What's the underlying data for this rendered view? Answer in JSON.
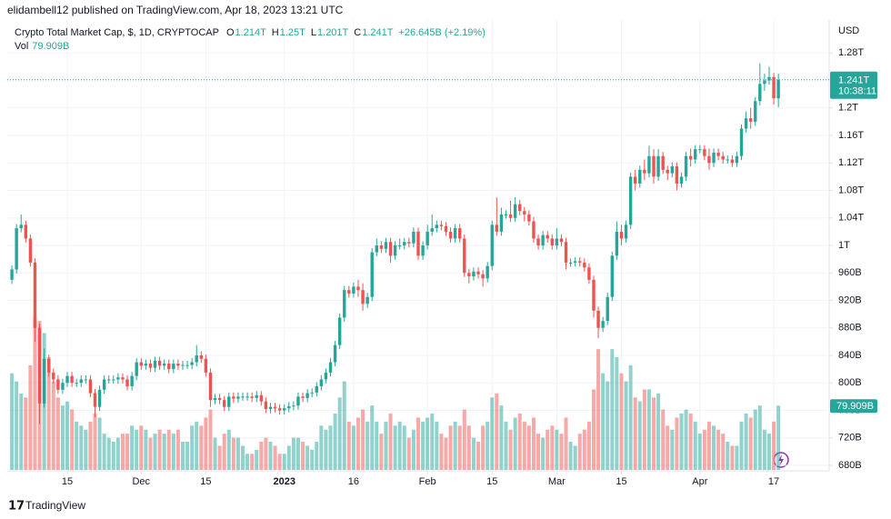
{
  "header": "elidambell12 published on TradingView.com, Apr 18, 2023 13:21 UTC",
  "footer_logo": "TradingView",
  "chart_data": {
    "type": "candlestick",
    "legend": {
      "title": "Crypto Total Market Cap, $, 1D, CRYPTOCAP",
      "ohlc": [
        {
          "key": "O",
          "label": "1.214T"
        },
        {
          "key": "H",
          "label": "1.25T"
        },
        {
          "key": "L",
          "label": "1.201T"
        },
        {
          "key": "C",
          "label": "1.241T"
        }
      ],
      "change": "+26.645B (+2.19%)",
      "volume_key": "Vol",
      "volume_label": "79.909B"
    },
    "y_unit": "USD",
    "last_close_label": "1.241T",
    "countdown": "10:38:11",
    "last_volume_label": "79.909B",
    "up_color": "#26a69a",
    "down_color": "#ef5350",
    "grid": true,
    "xlim": [
      "2022-11-02",
      "2023-04-29"
    ],
    "ylim": [
      672,
      1328
    ],
    "volume_lim": [
      0,
      560
    ],
    "yticks": [
      {
        "value": 680,
        "label": "680B"
      },
      {
        "value": 720,
        "label": "720B"
      },
      {
        "value": 760,
        "label": "760B"
      },
      {
        "value": 800,
        "label": "800B"
      },
      {
        "value": 840,
        "label": "840B"
      },
      {
        "value": 880,
        "label": "880B"
      },
      {
        "value": 920,
        "label": "920B"
      },
      {
        "value": 960,
        "label": "960B"
      },
      {
        "value": 1000,
        "label": "1T"
      },
      {
        "value": 1040,
        "label": "1.04T"
      },
      {
        "value": 1080,
        "label": "1.08T"
      },
      {
        "value": 1120,
        "label": "1.12T"
      },
      {
        "value": 1160,
        "label": "1.16T"
      },
      {
        "value": 1200,
        "label": "1.2T"
      },
      {
        "value": 1280,
        "label": "1.28T"
      }
    ],
    "xticks": [
      {
        "value": "2022-11-15",
        "label": "15"
      },
      {
        "value": "2022-12-01",
        "label": "Dec"
      },
      {
        "value": "2022-12-15",
        "label": "15"
      },
      {
        "value": "2023-01-01",
        "label": "2023"
      },
      {
        "value": "2023-01-16",
        "label": "16"
      },
      {
        "value": "2023-02-01",
        "label": "Feb"
      },
      {
        "value": "2023-02-15",
        "label": "15"
      },
      {
        "value": "2023-03-01",
        "label": "Mar"
      },
      {
        "value": "2023-03-15",
        "label": "15"
      },
      {
        "value": "2023-04-01",
        "label": "Apr"
      },
      {
        "value": "2023-04-17",
        "label": "17"
      }
    ],
    "x": [
      "2022-11-03",
      "2022-11-04",
      "2022-11-05",
      "2022-11-06",
      "2022-11-07",
      "2022-11-08",
      "2022-11-09",
      "2022-11-10",
      "2022-11-11",
      "2022-11-12",
      "2022-11-13",
      "2022-11-14",
      "2022-11-15",
      "2022-11-16",
      "2022-11-17",
      "2022-11-18",
      "2022-11-19",
      "2022-11-20",
      "2022-11-21",
      "2022-11-22",
      "2022-11-23",
      "2022-11-24",
      "2022-11-25",
      "2022-11-26",
      "2022-11-27",
      "2022-11-28",
      "2022-11-29",
      "2022-11-30",
      "2022-12-01",
      "2022-12-02",
      "2022-12-03",
      "2022-12-04",
      "2022-12-05",
      "2022-12-06",
      "2022-12-07",
      "2022-12-08",
      "2022-12-09",
      "2022-12-10",
      "2022-12-11",
      "2022-12-12",
      "2022-12-13",
      "2022-12-14",
      "2022-12-15",
      "2022-12-16",
      "2022-12-17",
      "2022-12-18",
      "2022-12-19",
      "2022-12-20",
      "2022-12-21",
      "2022-12-22",
      "2022-12-23",
      "2022-12-24",
      "2022-12-25",
      "2022-12-26",
      "2022-12-27",
      "2022-12-28",
      "2022-12-29",
      "2022-12-30",
      "2022-12-31",
      "2023-01-01",
      "2023-01-02",
      "2023-01-03",
      "2023-01-04",
      "2023-01-05",
      "2023-01-06",
      "2023-01-07",
      "2023-01-08",
      "2023-01-09",
      "2023-01-10",
      "2023-01-11",
      "2023-01-12",
      "2023-01-13",
      "2023-01-14",
      "2023-01-15",
      "2023-01-16",
      "2023-01-17",
      "2023-01-18",
      "2023-01-19",
      "2023-01-20",
      "2023-01-21",
      "2023-01-22",
      "2023-01-23",
      "2023-01-24",
      "2023-01-25",
      "2023-01-26",
      "2023-01-27",
      "2023-01-28",
      "2023-01-29",
      "2023-01-30",
      "2023-01-31",
      "2023-02-01",
      "2023-02-02",
      "2023-02-03",
      "2023-02-04",
      "2023-02-05",
      "2023-02-06",
      "2023-02-07",
      "2023-02-08",
      "2023-02-09",
      "2023-02-10",
      "2023-02-11",
      "2023-02-12",
      "2023-02-13",
      "2023-02-14",
      "2023-02-15",
      "2023-02-16",
      "2023-02-17",
      "2023-02-18",
      "2023-02-19",
      "2023-02-20",
      "2023-02-21",
      "2023-02-22",
      "2023-02-23",
      "2023-02-24",
      "2023-02-25",
      "2023-02-26",
      "2023-02-27",
      "2023-02-28",
      "2023-03-01",
      "2023-03-02",
      "2023-03-03",
      "2023-03-04",
      "2023-03-05",
      "2023-03-06",
      "2023-03-07",
      "2023-03-08",
      "2023-03-09",
      "2023-03-10",
      "2023-03-11",
      "2023-03-12",
      "2023-03-13",
      "2023-03-14",
      "2023-03-15",
      "2023-03-16",
      "2023-03-17",
      "2023-03-18",
      "2023-03-19",
      "2023-03-20",
      "2023-03-21",
      "2023-03-22",
      "2023-03-23",
      "2023-03-24",
      "2023-03-25",
      "2023-03-26",
      "2023-03-27",
      "2023-03-28",
      "2023-03-29",
      "2023-03-30",
      "2023-03-31",
      "2023-04-01",
      "2023-04-02",
      "2023-04-03",
      "2023-04-04",
      "2023-04-05",
      "2023-04-06",
      "2023-04-07",
      "2023-04-08",
      "2023-04-09",
      "2023-04-10",
      "2023-04-11",
      "2023-04-12",
      "2023-04-13",
      "2023-04-14",
      "2023-04-15",
      "2023-04-16",
      "2023-04-17",
      "2023-04-18"
    ],
    "open": [
      950,
      965,
      1025,
      1030,
      1010,
      975,
      880,
      770,
      835,
      815,
      805,
      790,
      800,
      810,
      800,
      800,
      805,
      805,
      785,
      765,
      790,
      805,
      805,
      805,
      808,
      805,
      795,
      810,
      830,
      825,
      828,
      822,
      832,
      825,
      828,
      820,
      828,
      825,
      826,
      826,
      830,
      840,
      835,
      815,
      775,
      778,
      775,
      765,
      780,
      777,
      780,
      780,
      780,
      778,
      782,
      773,
      762,
      765,
      763,
      760,
      763,
      766,
      767,
      780,
      778,
      785,
      786,
      795,
      805,
      815,
      830,
      855,
      895,
      935,
      930,
      940,
      935,
      915,
      925,
      990,
      1000,
      995,
      1005,
      985,
      1000,
      1000,
      1005,
      1003,
      1020,
      985,
      1000,
      1020,
      1025,
      1030,
      1028,
      1020,
      1010,
      1025,
      1010,
      960,
      955,
      962,
      958,
      952,
      970,
      1030,
      1020,
      1045,
      1045,
      1040,
      1060,
      1050,
      1045,
      1035,
      1010,
      1000,
      1015,
      1010,
      1000,
      1010,
      1005,
      975,
      975,
      977,
      975,
      968,
      950,
      905,
      880,
      890,
      925,
      985,
      1020,
      1010,
      1030,
      1100,
      1090,
      1110,
      1105,
      1130,
      1100,
      1130,
      1110,
      1105,
      1115,
      1090,
      1100,
      1130,
      1125,
      1140,
      1140,
      1130,
      1120,
      1135,
      1130,
      1125,
      1125,
      1120,
      1130,
      1170,
      1185,
      1180,
      1210,
      1235,
      1240,
      1245,
      1214
    ],
    "high": [
      971,
      1031,
      1045,
      1036,
      1016,
      981,
      886,
      850,
      841,
      821,
      811,
      806,
      816,
      816,
      806,
      811,
      811,
      811,
      791,
      796,
      811,
      811,
      811,
      814,
      814,
      811,
      816,
      836,
      836,
      834,
      834,
      838,
      838,
      834,
      834,
      834,
      834,
      832,
      832,
      836,
      855,
      846,
      841,
      821,
      784,
      784,
      781,
      786,
      786,
      786,
      786,
      786,
      786,
      788,
      788,
      779,
      771,
      771,
      769,
      769,
      772,
      773,
      786,
      786,
      791,
      792,
      801,
      811,
      821,
      836,
      861,
      901,
      941,
      941,
      946,
      950,
      945,
      931,
      996,
      1010,
      1006,
      1011,
      1011,
      1006,
      1010,
      1011,
      1011,
      1026,
      1026,
      1006,
      1030,
      1045,
      1036,
      1036,
      1034,
      1026,
      1031,
      1031,
      1016,
      966,
      968,
      968,
      964,
      976,
      1036,
      1070,
      1055,
      1051,
      1065,
      1070,
      1066,
      1056,
      1051,
      1041,
      1016,
      1021,
      1021,
      1016,
      1025,
      1016,
      1011,
      981,
      983,
      983,
      981,
      974,
      956,
      911,
      896,
      931,
      991,
      1035,
      1030,
      1036,
      1106,
      1110,
      1116,
      1125,
      1145,
      1140,
      1140,
      1136,
      1116,
      1121,
      1121,
      1106,
      1136,
      1141,
      1146,
      1146,
      1146,
      1141,
      1141,
      1141,
      1136,
      1131,
      1131,
      1136,
      1176,
      1195,
      1200,
      1216,
      1265,
      1250,
      1260,
      1251,
      1250
    ],
    "low": [
      944,
      959,
      1019,
      1004,
      969,
      860,
      740,
      764,
      809,
      799,
      784,
      784,
      794,
      794,
      794,
      794,
      799,
      779,
      750,
      759,
      784,
      799,
      799,
      799,
      799,
      789,
      789,
      804,
      819,
      819,
      816,
      816,
      819,
      819,
      814,
      814,
      819,
      819,
      820,
      820,
      824,
      829,
      809,
      765,
      769,
      769,
      759,
      759,
      771,
      771,
      774,
      774,
      772,
      772,
      767,
      756,
      756,
      757,
      754,
      754,
      757,
      760,
      761,
      772,
      772,
      779,
      780,
      789,
      799,
      809,
      824,
      849,
      889,
      924,
      924,
      925,
      905,
      909,
      919,
      984,
      989,
      989,
      975,
      979,
      994,
      994,
      997,
      997,
      979,
      979,
      994,
      1014,
      1019,
      1022,
      1014,
      1004,
      1004,
      1004,
      954,
      945,
      949,
      952,
      940,
      946,
      964,
      1014,
      1014,
      1039,
      1034,
      1034,
      1044,
      1035,
      1029,
      1004,
      994,
      994,
      1004,
      994,
      994,
      999,
      965,
      969,
      969,
      969,
      962,
      944,
      895,
      865,
      874,
      884,
      919,
      979,
      1000,
      1004,
      1024,
      1080,
      1084,
      1095,
      1099,
      1090,
      1094,
      1104,
      1095,
      1099,
      1080,
      1084,
      1094,
      1115,
      1119,
      1134,
      1124,
      1110,
      1114,
      1124,
      1119,
      1119,
      1114,
      1114,
      1124,
      1164,
      1170,
      1174,
      1204,
      1225,
      1234,
      1205,
      1201
    ],
    "close": [
      965,
      1025,
      1030,
      1010,
      975,
      880,
      770,
      835,
      815,
      805,
      790,
      800,
      810,
      800,
      800,
      805,
      805,
      785,
      765,
      790,
      805,
      805,
      805,
      808,
      805,
      795,
      810,
      830,
      825,
      828,
      822,
      832,
      825,
      828,
      820,
      828,
      825,
      826,
      826,
      830,
      840,
      835,
      815,
      775,
      778,
      775,
      765,
      780,
      777,
      780,
      780,
      780,
      778,
      782,
      773,
      762,
      765,
      763,
      760,
      763,
      766,
      767,
      780,
      778,
      785,
      786,
      795,
      805,
      815,
      830,
      855,
      895,
      935,
      930,
      940,
      935,
      915,
      925,
      990,
      1000,
      995,
      1005,
      985,
      1000,
      1000,
      1005,
      1003,
      1020,
      985,
      1000,
      1020,
      1025,
      1030,
      1028,
      1020,
      1010,
      1025,
      1010,
      960,
      955,
      962,
      958,
      952,
      970,
      1030,
      1020,
      1045,
      1045,
      1040,
      1060,
      1050,
      1045,
      1035,
      1010,
      1000,
      1015,
      1010,
      1000,
      1010,
      1005,
      975,
      975,
      977,
      975,
      968,
      950,
      905,
      880,
      890,
      925,
      985,
      1020,
      1010,
      1030,
      1100,
      1090,
      1110,
      1105,
      1130,
      1100,
      1130,
      1110,
      1105,
      1115,
      1090,
      1100,
      1130,
      1125,
      1140,
      1140,
      1130,
      1120,
      1135,
      1130,
      1125,
      1125,
      1120,
      1130,
      1170,
      1185,
      1180,
      1210,
      1235,
      1240,
      1245,
      1214,
      1241
    ],
    "volume": [
      120,
      110,
      95,
      90,
      130,
      190,
      185,
      170,
      140,
      110,
      90,
      80,
      85,
      75,
      60,
      55,
      50,
      60,
      70,
      65,
      45,
      40,
      35,
      40,
      45,
      45,
      55,
      50,
      55,
      50,
      40,
      45,
      50,
      45,
      50,
      45,
      50,
      35,
      35,
      55,
      60,
      55,
      65,
      75,
      40,
      30,
      45,
      50,
      40,
      40,
      30,
      20,
      20,
      25,
      35,
      40,
      35,
      30,
      20,
      20,
      30,
      40,
      40,
      35,
      30,
      25,
      35,
      55,
      50,
      55,
      70,
      90,
      110,
      60,
      55,
      65,
      75,
      60,
      80,
      60,
      45,
      60,
      70,
      55,
      60,
      55,
      40,
      50,
      65,
      60,
      65,
      70,
      60,
      45,
      40,
      55,
      60,
      55,
      75,
      55,
      40,
      35,
      55,
      60,
      90,
      95,
      80,
      60,
      50,
      65,
      70,
      60,
      55,
      65,
      45,
      40,
      50,
      55,
      50,
      45,
      65,
      35,
      30,
      45,
      50,
      60,
      100,
      150,
      120,
      110,
      150,
      140,
      120,
      110,
      130,
      90,
      85,
      100,
      100,
      90,
      95,
      75,
      55,
      50,
      65,
      70,
      75,
      70,
      60,
      45,
      50,
      60,
      55,
      50,
      45,
      35,
      30,
      30,
      60,
      70,
      65,
      75,
      80,
      50,
      45,
      60,
      79.909
    ]
  }
}
